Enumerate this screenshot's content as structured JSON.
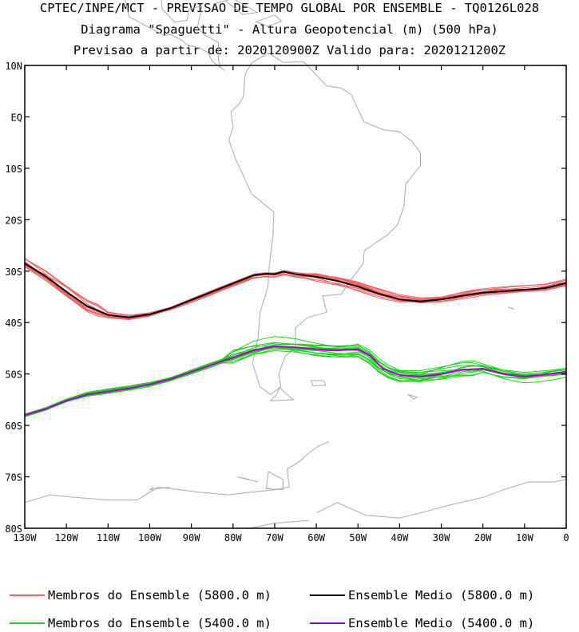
{
  "titles": {
    "line1": "CPTEC/INPE/MCT - PREVISAO DE TEMPO GLOBAL POR ENSEMBLE - TQ0126L028",
    "line2": "Diagrama \"Spaguetti\" - Altura Geopotencial (m) (500 hPa)",
    "line3": "Previsao a partir de: 2020120900Z  Valido para: 2020121200Z"
  },
  "axes": {
    "lat_labels": [
      "10N",
      "EQ",
      "10S",
      "20S",
      "30S",
      "40S",
      "50S",
      "60S",
      "70S",
      "80S"
    ],
    "lat_values": [
      10,
      0,
      -10,
      -20,
      -30,
      -40,
      -50,
      -60,
      -70,
      -80
    ],
    "lon_labels": [
      "130W",
      "120W",
      "110W",
      "100W",
      "90W",
      "80W",
      "70W",
      "60W",
      "50W",
      "40W",
      "30W",
      "20W",
      "10W",
      "0"
    ],
    "lon_values": [
      -130,
      -120,
      -110,
      -100,
      -90,
      -80,
      -70,
      -60,
      -50,
      -40,
      -30,
      -20,
      -10,
      0
    ],
    "lon_range": [
      -130,
      0
    ],
    "lat_range": [
      -80,
      10
    ]
  },
  "legend": [
    {
      "label": "Membros do Ensemble (5800.0 m)",
      "color": "#f06060"
    },
    {
      "label": "Ensemble Medio (5800.0 m)",
      "color": "#000000"
    },
    {
      "label": "Membros do Ensemble (5400.0 m)",
      "color": "#22cc22"
    },
    {
      "label": "Ensemble Medio (5400.0 m)",
      "color": "#aa00cc"
    }
  ],
  "colors": {
    "members_5800": "#f06060",
    "mean_5800": "#000000",
    "members_5400": "#22cc22",
    "mean_5400": "#aa00cc",
    "coast": "#aaaaaa"
  },
  "chart_data": {
    "type": "line",
    "xunit": "longitude (deg)",
    "yunit": "latitude (deg)",
    "series": [
      {
        "name": "Ensemble Medio (5800.0 m)",
        "x": [
          -130,
          -125,
          -120,
          -115,
          -110,
          -105,
          -100,
          -95,
          -90,
          -85,
          -80,
          -75,
          -72,
          -70,
          -68,
          -65,
          -60,
          -55,
          -50,
          -45,
          -40,
          -35,
          -30,
          -25,
          -20,
          -15,
          -10,
          -5,
          0
        ],
        "y": [
          -28.5,
          -31,
          -34,
          -36.8,
          -38.5,
          -39,
          -38.4,
          -37.2,
          -35.6,
          -34.0,
          -32.4,
          -30.8,
          -30.5,
          -30.6,
          -30.1,
          -30.6,
          -31.1,
          -31.9,
          -33,
          -34.4,
          -35.5,
          -35.9,
          -35.5,
          -34.8,
          -34.2,
          -33.9,
          -33.6,
          -33.3,
          -32.3
        ]
      },
      {
        "name": "Ensemble Medio (5400.0 m)",
        "x": [
          -130,
          -125,
          -120,
          -115,
          -110,
          -105,
          -100,
          -95,
          -90,
          -85,
          -80,
          -75,
          -70,
          -65,
          -60,
          -55,
          -50,
          -47,
          -44,
          -40,
          -35,
          -30,
          -25,
          -20,
          -15,
          -10,
          -5,
          0
        ],
        "y": [
          -58,
          -56.8,
          -55.2,
          -54,
          -53.4,
          -52.8,
          -52,
          -51,
          -49.6,
          -48.2,
          -46.8,
          -45.4,
          -44.6,
          -44.8,
          -45.2,
          -45.4,
          -45.2,
          -46.5,
          -49,
          -50.2,
          -50.5,
          -50,
          -49.2,
          -49,
          -50,
          -50.5,
          -50.1,
          -49.6
        ]
      }
    ]
  }
}
